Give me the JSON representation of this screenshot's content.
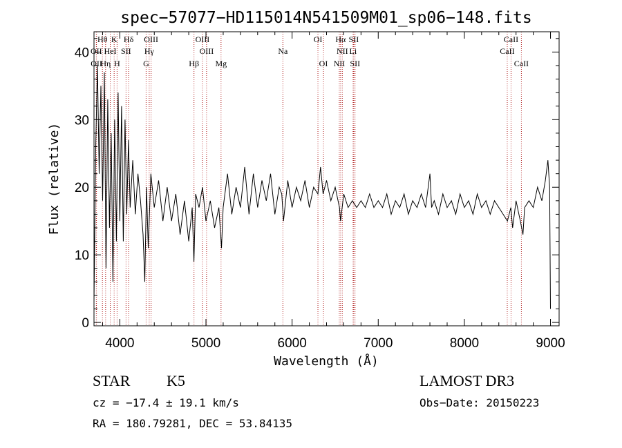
{
  "chart_data": {
    "type": "line",
    "title": "spec−57077−HD115014N541509M01_sp06−148.fits",
    "xlabel": "Wavelength (Å)",
    "ylabel": "Flux (relative)",
    "xlim": [
      3700,
      9100
    ],
    "ylim": [
      -0.5,
      43
    ],
    "xticks": [
      4000,
      5000,
      6000,
      7000,
      8000,
      9000
    ],
    "yticks": [
      0,
      10,
      20,
      30,
      40
    ],
    "minor_x_step": 200,
    "minor_y_step": 2,
    "series_color": "#000000",
    "reference_line_color": "#b22222",
    "series": [
      {
        "name": "flux",
        "points": [
          [
            3700,
            3
          ],
          [
            3720,
            26
          ],
          [
            3740,
            38
          ],
          [
            3760,
            22
          ],
          [
            3780,
            35
          ],
          [
            3800,
            18
          ],
          [
            3820,
            37
          ],
          [
            3840,
            8
          ],
          [
            3860,
            33
          ],
          [
            3880,
            14
          ],
          [
            3900,
            28
          ],
          [
            3920,
            6
          ],
          [
            3940,
            30
          ],
          [
            3960,
            12
          ],
          [
            3980,
            34
          ],
          [
            4000,
            15
          ],
          [
            4020,
            32
          ],
          [
            4040,
            12
          ],
          [
            4060,
            30
          ],
          [
            4080,
            16
          ],
          [
            4100,
            27
          ],
          [
            4120,
            17
          ],
          [
            4150,
            24
          ],
          [
            4180,
            16
          ],
          [
            4210,
            22
          ],
          [
            4240,
            18
          ],
          [
            4270,
            13
          ],
          [
            4290,
            6
          ],
          [
            4310,
            20
          ],
          [
            4330,
            11
          ],
          [
            4360,
            22
          ],
          [
            4400,
            17
          ],
          [
            4450,
            21
          ],
          [
            4500,
            15
          ],
          [
            4550,
            20
          ],
          [
            4600,
            15
          ],
          [
            4650,
            19
          ],
          [
            4700,
            13
          ],
          [
            4750,
            18
          ],
          [
            4800,
            12
          ],
          [
            4840,
            17
          ],
          [
            4860,
            9
          ],
          [
            4880,
            19
          ],
          [
            4920,
            17
          ],
          [
            4960,
            20
          ],
          [
            5000,
            15
          ],
          [
            5050,
            18
          ],
          [
            5100,
            14
          ],
          [
            5150,
            17
          ],
          [
            5180,
            11
          ],
          [
            5200,
            17
          ],
          [
            5250,
            22
          ],
          [
            5300,
            16
          ],
          [
            5350,
            20
          ],
          [
            5400,
            17
          ],
          [
            5450,
            23
          ],
          [
            5500,
            16
          ],
          [
            5550,
            22
          ],
          [
            5600,
            17
          ],
          [
            5650,
            21
          ],
          [
            5700,
            18
          ],
          [
            5750,
            22
          ],
          [
            5800,
            16
          ],
          [
            5850,
            20
          ],
          [
            5880,
            19
          ],
          [
            5900,
            15
          ],
          [
            5950,
            21
          ],
          [
            6000,
            17
          ],
          [
            6050,
            20
          ],
          [
            6100,
            18
          ],
          [
            6150,
            21
          ],
          [
            6200,
            17
          ],
          [
            6250,
            20
          ],
          [
            6300,
            19
          ],
          [
            6330,
            23
          ],
          [
            6360,
            19
          ],
          [
            6400,
            21
          ],
          [
            6450,
            18
          ],
          [
            6500,
            20
          ],
          [
            6550,
            17
          ],
          [
            6563,
            15
          ],
          [
            6600,
            19
          ],
          [
            6650,
            17
          ],
          [
            6700,
            18
          ],
          [
            6750,
            17
          ],
          [
            6800,
            18
          ],
          [
            6850,
            17
          ],
          [
            6900,
            19
          ],
          [
            6950,
            17
          ],
          [
            7000,
            18
          ],
          [
            7050,
            17
          ],
          [
            7100,
            19
          ],
          [
            7150,
            16
          ],
          [
            7200,
            18
          ],
          [
            7250,
            17
          ],
          [
            7300,
            19
          ],
          [
            7350,
            16
          ],
          [
            7400,
            18
          ],
          [
            7450,
            17
          ],
          [
            7500,
            19
          ],
          [
            7550,
            17
          ],
          [
            7600,
            22
          ],
          [
            7620,
            17
          ],
          [
            7650,
            18
          ],
          [
            7700,
            16
          ],
          [
            7750,
            19
          ],
          [
            7800,
            17
          ],
          [
            7850,
            18
          ],
          [
            7900,
            16
          ],
          [
            7950,
            19
          ],
          [
            8000,
            17
          ],
          [
            8050,
            18
          ],
          [
            8100,
            16
          ],
          [
            8150,
            19
          ],
          [
            8200,
            17
          ],
          [
            8250,
            18
          ],
          [
            8300,
            16
          ],
          [
            8350,
            18
          ],
          [
            8400,
            17
          ],
          [
            8450,
            16
          ],
          [
            8500,
            15
          ],
          [
            8540,
            17
          ],
          [
            8560,
            14
          ],
          [
            8600,
            18
          ],
          [
            8650,
            15
          ],
          [
            8680,
            13
          ],
          [
            8700,
            17
          ],
          [
            8750,
            18
          ],
          [
            8800,
            17
          ],
          [
            8850,
            20
          ],
          [
            8900,
            18
          ],
          [
            8940,
            21
          ],
          [
            8970,
            24
          ],
          [
            8990,
            20
          ],
          [
            9000,
            2
          ]
        ]
      }
    ],
    "line_markers": [
      {
        "label": "Hθ",
        "x": 3798,
        "row": 1
      },
      {
        "label": "K",
        "x": 3934,
        "row": 1
      },
      {
        "label": "Hδ",
        "x": 4102,
        "row": 1
      },
      {
        "label": "OIII",
        "x": 4363,
        "row": 1
      },
      {
        "label": "OIII",
        "x": 4959,
        "row": 1
      },
      {
        "label": "OI",
        "x": 6300,
        "row": 1
      },
      {
        "label": "Hα",
        "x": 6563,
        "row": 1
      },
      {
        "label": "SII",
        "x": 6716,
        "row": 1
      },
      {
        "label": "CaII",
        "x": 8542,
        "row": 1
      },
      {
        "label": "OII",
        "x": 3727,
        "row": 2
      },
      {
        "label": "HeI",
        "x": 3889,
        "row": 2
      },
      {
        "label": "SII",
        "x": 4072,
        "row": 2
      },
      {
        "label": "Hγ",
        "x": 4341,
        "row": 2
      },
      {
        "label": "OIII",
        "x": 5007,
        "row": 2
      },
      {
        "label": "Na",
        "x": 5893,
        "row": 2
      },
      {
        "label": "NII",
        "x": 6583,
        "row": 2
      },
      {
        "label": "Li",
        "x": 6708,
        "row": 2
      },
      {
        "label": "CaII",
        "x": 8498,
        "row": 2
      },
      {
        "label": "OII",
        "x": 3729,
        "row": 3
      },
      {
        "label": "Hη",
        "x": 3835,
        "row": 3
      },
      {
        "label": "H",
        "x": 3968,
        "row": 3
      },
      {
        "label": "G",
        "x": 4305,
        "row": 3
      },
      {
        "label": "Hβ",
        "x": 4861,
        "row": 3
      },
      {
        "label": "Mg",
        "x": 5175,
        "row": 3
      },
      {
        "label": "OI",
        "x": 6364,
        "row": 3
      },
      {
        "label": "NII",
        "x": 6548,
        "row": 3
      },
      {
        "label": "SII",
        "x": 6731,
        "row": 3
      },
      {
        "label": "CaII",
        "x": 8662,
        "row": 3
      }
    ]
  },
  "info": {
    "class_label": "STAR",
    "subclass": "K5",
    "survey": "LAMOST DR3",
    "cz": "cz = −17.4 ± 19.1 km/s",
    "obs_date": "Obs−Date: 20150223",
    "coords": "RA = 180.79281, DEC =  53.84135"
  }
}
